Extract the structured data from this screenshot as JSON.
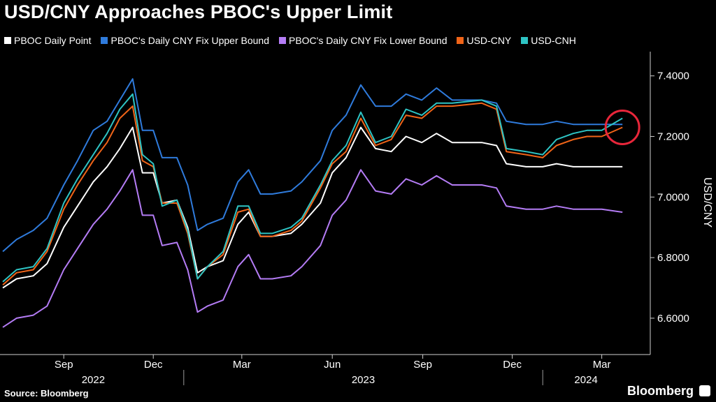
{
  "title": "USD/CNY Approaches PBOC's Upper Limit",
  "source": "Source: Bloomberg",
  "brand": "Bloomberg",
  "chart_data": {
    "type": "line",
    "title": "USD/CNY Approaches PBOC's Upper Limit",
    "ylabel": "USD/CNY",
    "ylim": [
      6.48,
      7.48
    ],
    "yticks": [
      "7.4000",
      "7.2000",
      "7.0000",
      "6.8000",
      "6.6000"
    ],
    "ytick_values": [
      7.4,
      7.2,
      7.0,
      6.8,
      6.6
    ],
    "x_month_ticks": [
      "Sep",
      "Dec",
      "Mar",
      "Jun",
      "Sep",
      "Dec",
      "Mar"
    ],
    "x_month_dates": [
      "2022-09-01",
      "2022-12-01",
      "2023-03-01",
      "2023-06-01",
      "2023-09-01",
      "2023-12-01",
      "2024-03-01"
    ],
    "x_year_labels": [
      "2022",
      "2023",
      "2024"
    ],
    "x_range": [
      "2022-07-01",
      "2024-03-29"
    ],
    "grid": false,
    "legend_position": "top",
    "highlight": {
      "date": "2024-03-22",
      "value": 7.23,
      "color": "#e8263a"
    },
    "series": [
      {
        "name": "PBOC Daily Point",
        "color": "#ffffff",
        "points": [
          [
            "2022-07-01",
            6.7
          ],
          [
            "2022-07-15",
            6.73
          ],
          [
            "2022-08-01",
            6.74
          ],
          [
            "2022-08-15",
            6.78
          ],
          [
            "2022-09-01",
            6.9
          ],
          [
            "2022-09-15",
            6.97
          ],
          [
            "2022-10-01",
            7.05
          ],
          [
            "2022-10-15",
            7.1
          ],
          [
            "2022-10-28",
            7.16
          ],
          [
            "2022-11-10",
            7.23
          ],
          [
            "2022-11-20",
            7.08
          ],
          [
            "2022-12-01",
            7.08
          ],
          [
            "2022-12-10",
            6.98
          ],
          [
            "2022-12-25",
            6.99
          ],
          [
            "2023-01-05",
            6.9
          ],
          [
            "2023-01-15",
            6.75
          ],
          [
            "2023-01-25",
            6.77
          ],
          [
            "2023-02-10",
            6.79
          ],
          [
            "2023-02-25",
            6.91
          ],
          [
            "2023-03-08",
            6.95
          ],
          [
            "2023-03-20",
            6.87
          ],
          [
            "2023-04-01",
            6.87
          ],
          [
            "2023-04-20",
            6.88
          ],
          [
            "2023-05-01",
            6.91
          ],
          [
            "2023-05-20",
            6.98
          ],
          [
            "2023-06-01",
            7.08
          ],
          [
            "2023-06-15",
            7.13
          ],
          [
            "2023-06-30",
            7.23
          ],
          [
            "2023-07-15",
            7.16
          ],
          [
            "2023-07-31",
            7.15
          ],
          [
            "2023-08-15",
            7.2
          ],
          [
            "2023-08-31",
            7.18
          ],
          [
            "2023-09-15",
            7.21
          ],
          [
            "2023-10-01",
            7.18
          ],
          [
            "2023-10-31",
            7.18
          ],
          [
            "2023-11-15",
            7.17
          ],
          [
            "2023-11-25",
            7.11
          ],
          [
            "2023-12-15",
            7.1
          ],
          [
            "2024-01-01",
            7.1
          ],
          [
            "2024-01-15",
            7.11
          ],
          [
            "2024-02-01",
            7.1
          ],
          [
            "2024-02-15",
            7.1
          ],
          [
            "2024-03-01",
            7.1
          ],
          [
            "2024-03-22",
            7.1
          ]
        ]
      },
      {
        "name": "PBOC's Daily CNY Fix Upper Bound",
        "color": "#2f7bdc",
        "points": [
          [
            "2022-07-01",
            6.82
          ],
          [
            "2022-07-15",
            6.86
          ],
          [
            "2022-08-01",
            6.89
          ],
          [
            "2022-08-15",
            6.93
          ],
          [
            "2022-09-01",
            7.04
          ],
          [
            "2022-09-15",
            7.12
          ],
          [
            "2022-10-01",
            7.22
          ],
          [
            "2022-10-15",
            7.25
          ],
          [
            "2022-10-28",
            7.32
          ],
          [
            "2022-11-10",
            7.39
          ],
          [
            "2022-11-20",
            7.22
          ],
          [
            "2022-12-01",
            7.22
          ],
          [
            "2022-12-10",
            7.13
          ],
          [
            "2022-12-25",
            7.13
          ],
          [
            "2023-01-05",
            7.04
          ],
          [
            "2023-01-15",
            6.89
          ],
          [
            "2023-01-25",
            6.91
          ],
          [
            "2023-02-10",
            6.93
          ],
          [
            "2023-02-25",
            7.05
          ],
          [
            "2023-03-08",
            7.09
          ],
          [
            "2023-03-20",
            7.01
          ],
          [
            "2023-04-01",
            7.01
          ],
          [
            "2023-04-20",
            7.02
          ],
          [
            "2023-05-01",
            7.05
          ],
          [
            "2023-05-20",
            7.12
          ],
          [
            "2023-06-01",
            7.22
          ],
          [
            "2023-06-15",
            7.27
          ],
          [
            "2023-06-30",
            7.37
          ],
          [
            "2023-07-15",
            7.3
          ],
          [
            "2023-07-31",
            7.3
          ],
          [
            "2023-08-15",
            7.34
          ],
          [
            "2023-08-31",
            7.32
          ],
          [
            "2023-09-15",
            7.36
          ],
          [
            "2023-10-01",
            7.32
          ],
          [
            "2023-10-31",
            7.32
          ],
          [
            "2023-11-15",
            7.31
          ],
          [
            "2023-11-25",
            7.25
          ],
          [
            "2023-12-15",
            7.24
          ],
          [
            "2024-01-01",
            7.24
          ],
          [
            "2024-01-15",
            7.25
          ],
          [
            "2024-02-01",
            7.24
          ],
          [
            "2024-02-15",
            7.24
          ],
          [
            "2024-03-01",
            7.24
          ],
          [
            "2024-03-22",
            7.24
          ]
        ]
      },
      {
        "name": "PBOC's Daily CNY Fix Lower Bound",
        "color": "#b47cf5",
        "points": [
          [
            "2022-07-01",
            6.57
          ],
          [
            "2022-07-15",
            6.6
          ],
          [
            "2022-08-01",
            6.61
          ],
          [
            "2022-08-15",
            6.64
          ],
          [
            "2022-09-01",
            6.76
          ],
          [
            "2022-09-15",
            6.83
          ],
          [
            "2022-10-01",
            6.91
          ],
          [
            "2022-10-15",
            6.96
          ],
          [
            "2022-10-28",
            7.02
          ],
          [
            "2022-11-10",
            7.09
          ],
          [
            "2022-11-20",
            6.94
          ],
          [
            "2022-12-01",
            6.94
          ],
          [
            "2022-12-10",
            6.84
          ],
          [
            "2022-12-25",
            6.85
          ],
          [
            "2023-01-05",
            6.76
          ],
          [
            "2023-01-15",
            6.62
          ],
          [
            "2023-01-25",
            6.64
          ],
          [
            "2023-02-10",
            6.66
          ],
          [
            "2023-02-25",
            6.77
          ],
          [
            "2023-03-08",
            6.81
          ],
          [
            "2023-03-20",
            6.73
          ],
          [
            "2023-04-01",
            6.73
          ],
          [
            "2023-04-20",
            6.74
          ],
          [
            "2023-05-01",
            6.77
          ],
          [
            "2023-05-20",
            6.84
          ],
          [
            "2023-06-01",
            6.94
          ],
          [
            "2023-06-15",
            6.99
          ],
          [
            "2023-06-30",
            7.09
          ],
          [
            "2023-07-15",
            7.02
          ],
          [
            "2023-07-31",
            7.01
          ],
          [
            "2023-08-15",
            7.06
          ],
          [
            "2023-08-31",
            7.04
          ],
          [
            "2023-09-15",
            7.07
          ],
          [
            "2023-10-01",
            7.04
          ],
          [
            "2023-10-31",
            7.04
          ],
          [
            "2023-11-15",
            7.03
          ],
          [
            "2023-11-25",
            6.97
          ],
          [
            "2023-12-15",
            6.96
          ],
          [
            "2024-01-01",
            6.96
          ],
          [
            "2024-01-15",
            6.97
          ],
          [
            "2024-02-01",
            6.96
          ],
          [
            "2024-02-15",
            6.96
          ],
          [
            "2024-03-01",
            6.96
          ],
          [
            "2024-03-22",
            6.95
          ]
        ]
      },
      {
        "name": "USD-CNY",
        "color": "#f06418",
        "points": [
          [
            "2022-07-01",
            6.71
          ],
          [
            "2022-07-15",
            6.75
          ],
          [
            "2022-08-01",
            6.76
          ],
          [
            "2022-08-15",
            6.82
          ],
          [
            "2022-09-01",
            6.96
          ],
          [
            "2022-09-15",
            7.04
          ],
          [
            "2022-10-01",
            7.12
          ],
          [
            "2022-10-15",
            7.18
          ],
          [
            "2022-10-28",
            7.26
          ],
          [
            "2022-11-10",
            7.3
          ],
          [
            "2022-11-20",
            7.12
          ],
          [
            "2022-12-01",
            7.1
          ],
          [
            "2022-12-10",
            6.98
          ],
          [
            "2022-12-25",
            6.98
          ],
          [
            "2023-01-05",
            6.88
          ],
          [
            "2023-01-15",
            6.73
          ],
          [
            "2023-01-25",
            6.77
          ],
          [
            "2023-02-10",
            6.81
          ],
          [
            "2023-02-25",
            6.95
          ],
          [
            "2023-03-08",
            6.96
          ],
          [
            "2023-03-20",
            6.87
          ],
          [
            "2023-04-01",
            6.87
          ],
          [
            "2023-04-20",
            6.89
          ],
          [
            "2023-05-01",
            6.92
          ],
          [
            "2023-05-20",
            7.03
          ],
          [
            "2023-06-01",
            7.11
          ],
          [
            "2023-06-15",
            7.15
          ],
          [
            "2023-06-30",
            7.26
          ],
          [
            "2023-07-15",
            7.17
          ],
          [
            "2023-07-31",
            7.19
          ],
          [
            "2023-08-15",
            7.27
          ],
          [
            "2023-08-31",
            7.26
          ],
          [
            "2023-09-15",
            7.3
          ],
          [
            "2023-10-01",
            7.3
          ],
          [
            "2023-10-31",
            7.31
          ],
          [
            "2023-11-15",
            7.29
          ],
          [
            "2023-11-25",
            7.15
          ],
          [
            "2023-12-15",
            7.14
          ],
          [
            "2024-01-01",
            7.13
          ],
          [
            "2024-01-15",
            7.17
          ],
          [
            "2024-02-01",
            7.19
          ],
          [
            "2024-02-15",
            7.2
          ],
          [
            "2024-03-01",
            7.2
          ],
          [
            "2024-03-22",
            7.23
          ]
        ]
      },
      {
        "name": "USD-CNH",
        "color": "#2ec4c4",
        "points": [
          [
            "2022-07-01",
            6.72
          ],
          [
            "2022-07-15",
            6.76
          ],
          [
            "2022-08-01",
            6.77
          ],
          [
            "2022-08-15",
            6.83
          ],
          [
            "2022-09-01",
            6.98
          ],
          [
            "2022-09-15",
            7.06
          ],
          [
            "2022-10-01",
            7.14
          ],
          [
            "2022-10-15",
            7.21
          ],
          [
            "2022-10-28",
            7.29
          ],
          [
            "2022-11-10",
            7.34
          ],
          [
            "2022-11-20",
            7.14
          ],
          [
            "2022-12-01",
            7.11
          ],
          [
            "2022-12-10",
            6.97
          ],
          [
            "2022-12-25",
            6.99
          ],
          [
            "2023-01-05",
            6.89
          ],
          [
            "2023-01-15",
            6.73
          ],
          [
            "2023-01-25",
            6.77
          ],
          [
            "2023-02-10",
            6.82
          ],
          [
            "2023-02-25",
            6.97
          ],
          [
            "2023-03-08",
            6.97
          ],
          [
            "2023-03-20",
            6.88
          ],
          [
            "2023-04-01",
            6.88
          ],
          [
            "2023-04-20",
            6.9
          ],
          [
            "2023-05-01",
            6.93
          ],
          [
            "2023-05-20",
            7.04
          ],
          [
            "2023-06-01",
            7.12
          ],
          [
            "2023-06-15",
            7.17
          ],
          [
            "2023-06-30",
            7.28
          ],
          [
            "2023-07-15",
            7.18
          ],
          [
            "2023-07-31",
            7.2
          ],
          [
            "2023-08-15",
            7.29
          ],
          [
            "2023-08-31",
            7.27
          ],
          [
            "2023-09-15",
            7.31
          ],
          [
            "2023-10-01",
            7.31
          ],
          [
            "2023-10-31",
            7.32
          ],
          [
            "2023-11-15",
            7.3
          ],
          [
            "2023-11-25",
            7.16
          ],
          [
            "2023-12-15",
            7.15
          ],
          [
            "2024-01-01",
            7.14
          ],
          [
            "2024-01-15",
            7.19
          ],
          [
            "2024-02-01",
            7.21
          ],
          [
            "2024-02-15",
            7.22
          ],
          [
            "2024-03-01",
            7.22
          ],
          [
            "2024-03-22",
            7.26
          ]
        ]
      }
    ]
  }
}
